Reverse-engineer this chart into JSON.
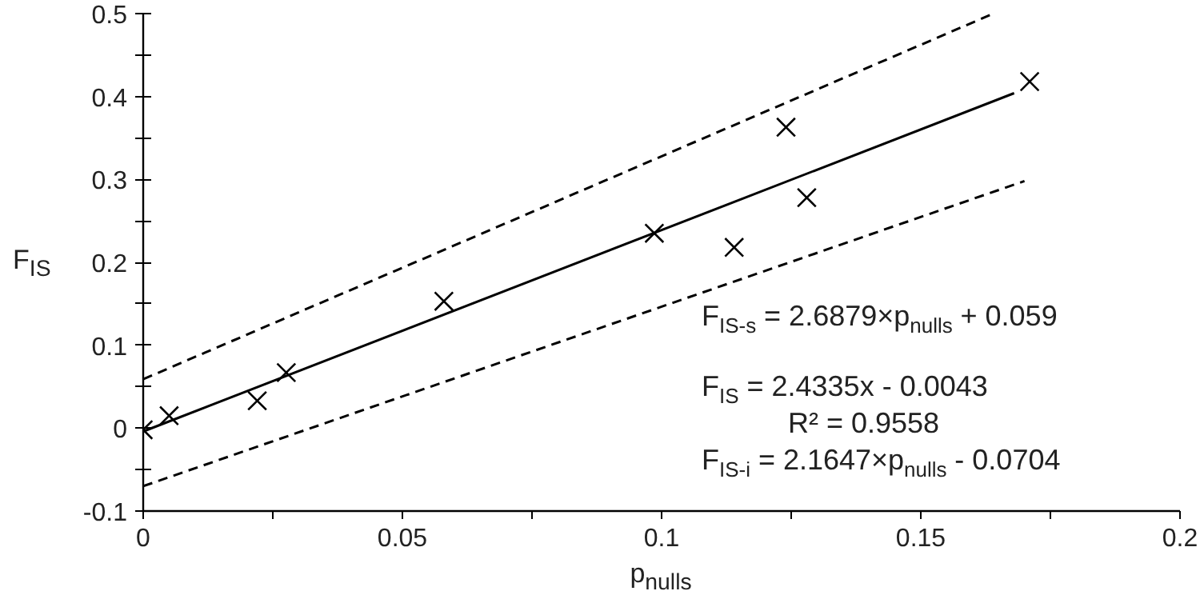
{
  "chart_data": {
    "type": "scatter",
    "xlabel": "p$_{nulls}$",
    "ylabel": "F$_{IS}$",
    "xlim": [
      0,
      0.2
    ],
    "ylim": [
      -0.1,
      0.5
    ],
    "xticks": [
      0,
      {
        "value": 0.025,
        "label": null
      },
      0.05,
      {
        "value": 0.075,
        "label": null
      },
      0.1,
      {
        "value": 0.125,
        "label": null
      },
      0.15,
      {
        "value": 0.175,
        "label": null
      },
      0.2
    ],
    "yticks": [
      -0.1,
      {
        "value": -0.05,
        "label": null
      },
      0,
      {
        "value": 0.05,
        "label": null
      },
      0.1,
      {
        "value": 0.15,
        "label": null
      },
      0.2,
      {
        "value": 0.25,
        "label": null
      },
      0.3,
      {
        "value": 0.35,
        "label": null
      },
      0.4,
      {
        "value": 0.45,
        "label": null
      },
      0.5
    ],
    "grid": false,
    "marker": "cross",
    "series": [
      {
        "color": "#000000",
        "x": [
          0,
          0.005,
          0.022,
          0.0276,
          0.058,
          0.0986,
          0.114,
          0.124,
          0.128,
          0.171
        ],
        "values": [
          -0.002,
          0.015,
          0.033,
          0.067,
          0.153,
          0.235,
          0.218,
          0.363,
          0.278,
          0.418
        ]
      },
      {
        "type": "line",
        "color": "#000000",
        "line_style": "solid",
        "marker": "none",
        "x": [
          0,
          0.168
        ],
        "values": [
          -0.004,
          0.404
        ]
      },
      {
        "type": "line",
        "color": "#000000",
        "line_style": "dashed",
        "marker": "none",
        "x": [
          0,
          0.164
        ],
        "values": [
          0.059,
          0.5
        ]
      },
      {
        "type": "line",
        "color": "#000000",
        "line_style": "dashed",
        "marker": "none",
        "x": [
          0,
          0.17
        ],
        "values": [
          -0.07,
          0.298
        ]
      }
    ],
    "annotations": [
      "F$_{IS-s}$ = 2.6879×p$_{nulls}$ + 0.059",
      "F$_{IS}$ = 2.4335x - 0.0043",
      "R² = 0.9558",
      "F$_{IS-i}$ = 2.1647×p$_{nulls}$ - 0.0704"
    ]
  }
}
